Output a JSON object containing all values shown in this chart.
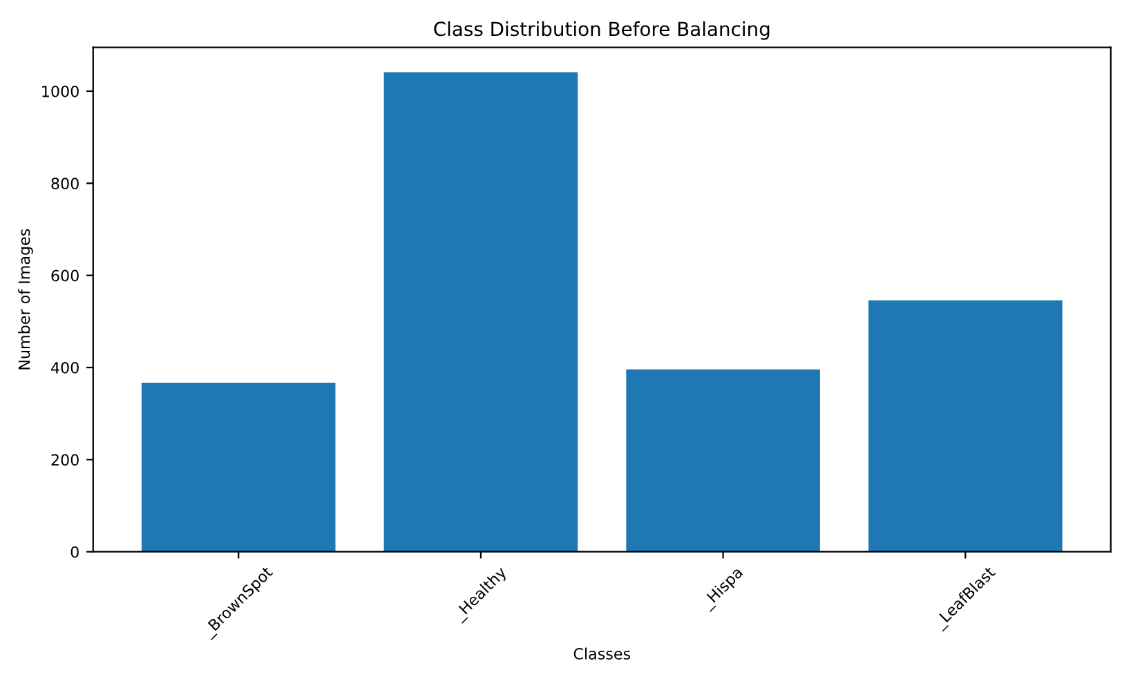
{
  "chart_data": {
    "type": "bar",
    "title": "Class Distribution Before Balancing",
    "xlabel": "Classes",
    "ylabel": "Number of Images",
    "categories": [
      "_BrownSpot",
      "_Healthy",
      "_Hispa",
      "_LeafBlast"
    ],
    "values": [
      367,
      1041,
      396,
      546
    ],
    "color": "#1f77b4",
    "ylim": [
      0,
      1095
    ],
    "yticks": [
      0,
      200,
      400,
      600,
      800,
      1000
    ],
    "grid": false
  }
}
